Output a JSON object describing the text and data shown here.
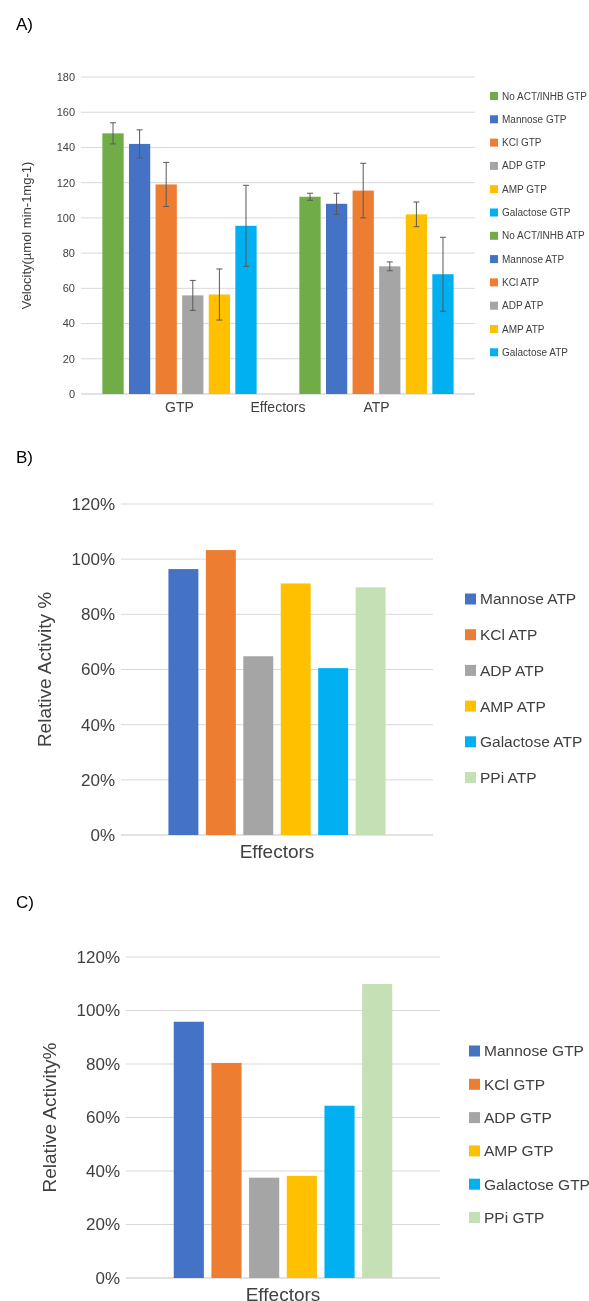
{
  "chart_data": [
    {
      "type": "bar",
      "title": "A)",
      "categories": [
        "GTP",
        "ATP"
      ],
      "xlabel": "Effectors",
      "ylabel": "Velocity(µmol min-1mg-1)",
      "ylim": [
        0,
        180
      ],
      "yticks": [
        0,
        20,
        40,
        60,
        80,
        100,
        120,
        140,
        160,
        180
      ],
      "grid": "y",
      "legend": "right",
      "series": [
        {
          "name": "No ACT/INHB GTP",
          "color": "#70ad47",
          "values": [
            148,
            null
          ],
          "errors": [
            6,
            null
          ]
        },
        {
          "name": "Mannose GTP",
          "color": "#4472c4",
          "values": [
            142,
            null
          ],
          "errors": [
            8,
            null
          ]
        },
        {
          "name": "KCl GTP",
          "color": "#ed7d31",
          "values": [
            119,
            null
          ],
          "errors": [
            12.5,
            null
          ]
        },
        {
          "name": "ADP GTP",
          "color": "#a5a5a5",
          "values": [
            56,
            null
          ],
          "errors": [
            8.5,
            null
          ]
        },
        {
          "name": "AMP GTP",
          "color": "#ffc000",
          "values": [
            56.5,
            null
          ],
          "errors": [
            14.5,
            null
          ]
        },
        {
          "name": "Galactose GTP",
          "color": "#00b0f0",
          "values": [
            95.5,
            null
          ],
          "errors": [
            23,
            null
          ]
        },
        {
          "name": "No ACT/INHB ATP",
          "color": "#70ad47",
          "values": [
            null,
            112
          ],
          "errors": [
            null,
            2
          ]
        },
        {
          "name": "Mannose ATP",
          "color": "#4472c4",
          "values": [
            null,
            108
          ],
          "errors": [
            null,
            6
          ]
        },
        {
          "name": "KCl ATP",
          "color": "#ed7d31",
          "values": [
            null,
            115.5
          ],
          "errors": [
            null,
            15.5
          ]
        },
        {
          "name": "ADP ATP",
          "color": "#a5a5a5",
          "values": [
            null,
            72.5
          ],
          "errors": [
            null,
            2.5
          ]
        },
        {
          "name": "AMP ATP",
          "color": "#ffc000",
          "values": [
            null,
            102
          ],
          "errors": [
            null,
            7
          ]
        },
        {
          "name": "Galactose ATP",
          "color": "#00b0f0",
          "values": [
            null,
            68
          ],
          "errors": [
            null,
            21
          ]
        }
      ]
    },
    {
      "type": "bar",
      "title": "B)",
      "categories": [
        null
      ],
      "xlabel": "Effectors",
      "ylabel": "Relative Activity %",
      "ylim": [
        0,
        120
      ],
      "yticks": [
        {
          "value": 0,
          "label": "0%"
        },
        {
          "value": 20,
          "label": "20%"
        },
        {
          "value": 40,
          "label": "40%"
        },
        {
          "value": 60,
          "label": "60%"
        },
        {
          "value": 80,
          "label": "80%"
        },
        {
          "value": 100,
          "label": "100%"
        },
        {
          "value": 120,
          "label": "120%"
        }
      ],
      "grid": "y",
      "legend": "right",
      "series": [
        {
          "name": "Mannose ATP",
          "color": "#4472c4",
          "values": [
            96.4
          ]
        },
        {
          "name": "KCl ATP",
          "color": "#ed7d31",
          "values": [
            103.3
          ]
        },
        {
          "name": "ADP ATP",
          "color": "#a5a5a5",
          "values": [
            64.8
          ]
        },
        {
          "name": "AMP ATP",
          "color": "#ffc000",
          "values": [
            91.2
          ]
        },
        {
          "name": "Galactose ATP",
          "color": "#00b0f0",
          "values": [
            60.5
          ]
        },
        {
          "name": "PPi ATP",
          "color": "#c5e0b4",
          "values": [
            89.8
          ]
        }
      ]
    },
    {
      "type": "bar",
      "title": "C)",
      "categories": [
        null
      ],
      "xlabel": "Effectors",
      "ylabel": "Relative Activity%",
      "ylim": [
        0,
        120
      ],
      "yticks": [
        {
          "value": 0,
          "label": "0%"
        },
        {
          "value": 20,
          "label": "20%"
        },
        {
          "value": 40,
          "label": "40%"
        },
        {
          "value": 60,
          "label": "60%"
        },
        {
          "value": 80,
          "label": "80%"
        },
        {
          "value": 100,
          "label": "100%"
        },
        {
          "value": 120,
          "label": "120%"
        }
      ],
      "grid": "y",
      "legend": "right",
      "series": [
        {
          "name": "Mannose GTP",
          "color": "#4472c4",
          "values": [
            95.8
          ]
        },
        {
          "name": "KCl GTP",
          "color": "#ed7d31",
          "values": [
            80.4
          ]
        },
        {
          "name": "ADP GTP",
          "color": "#a5a5a5",
          "values": [
            37.5
          ]
        },
        {
          "name": "AMP GTP",
          "color": "#ffc000",
          "values": [
            38.2
          ]
        },
        {
          "name": "Galactose GTP",
          "color": "#00b0f0",
          "values": [
            64.4
          ]
        },
        {
          "name": "PPi GTP",
          "color": "#c5e0b4",
          "values": [
            109.9
          ]
        }
      ]
    }
  ]
}
